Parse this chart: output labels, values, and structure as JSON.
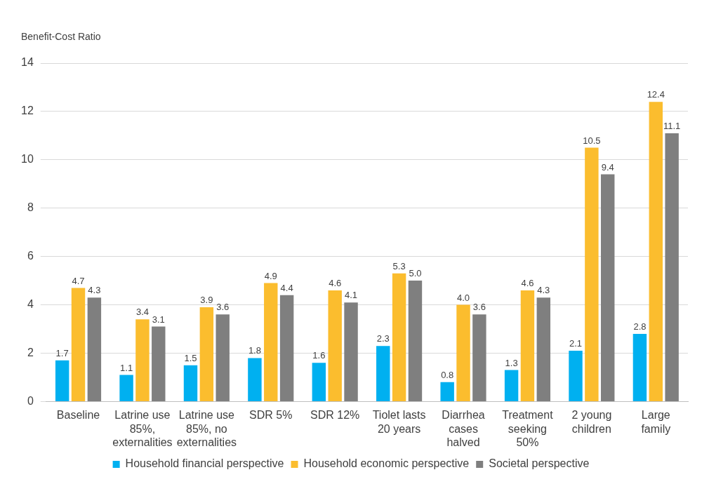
{
  "chart_data": {
    "type": "bar",
    "ylabel": "Benefit-Cost Ratio",
    "categories": [
      "Baseline",
      "Latrine use 85%, externalities",
      "Latrine use 85%, no externalities",
      "SDR 5%",
      "SDR 12%",
      "Tiolet lasts 20 years",
      "Diarrhea cases halved",
      "Treatment seeking 50%",
      "2 young children",
      "Large family"
    ],
    "series": [
      {
        "name": "Household financial perspective",
        "color": "#00b0f0",
        "values": [
          1.7,
          1.1,
          1.5,
          1.8,
          1.6,
          2.3,
          0.8,
          1.3,
          2.1,
          2.8
        ],
        "value_labels": [
          "1.7",
          "1.1",
          "1.5",
          "1.8",
          "1.6",
          "2.3",
          "0.8",
          "1.3",
          "2.1",
          "2.8"
        ]
      },
      {
        "name": "Household economic perspective",
        "color": "#fbbd2e",
        "values": [
          4.7,
          3.4,
          3.9,
          4.9,
          4.6,
          5.3,
          4.0,
          4.6,
          10.5,
          12.4
        ],
        "value_labels": [
          "4.7",
          "3.4",
          "3.9",
          "4.9",
          "4.6",
          "5.3",
          "4.0",
          "4.6",
          "10.5",
          "12.4"
        ]
      },
      {
        "name": "Societal perspective",
        "color": "#7f7f7f",
        "values": [
          4.3,
          3.1,
          3.6,
          4.4,
          4.1,
          5.0,
          3.6,
          4.3,
          9.4,
          11.1
        ],
        "value_labels": [
          "4.3",
          "3.1",
          "3.6",
          "4.4",
          "4.1",
          "5.0",
          "3.6",
          "4.3",
          "9.4",
          "11.1"
        ]
      }
    ],
    "ylim": [
      0,
      14
    ],
    "yticks": [
      0,
      2,
      4,
      6,
      8,
      10,
      12,
      14
    ],
    "grid": "y",
    "legend": "bottom"
  }
}
